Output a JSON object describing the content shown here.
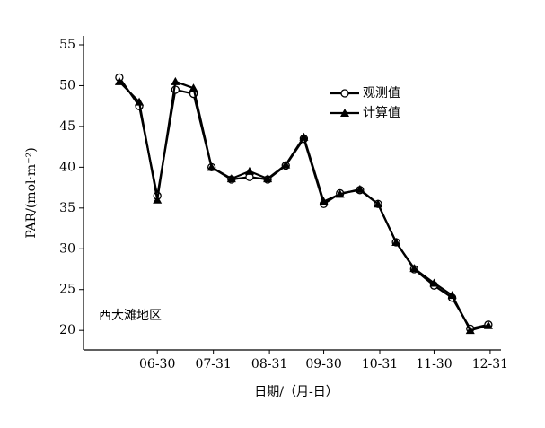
{
  "chart_data": {
    "type": "line",
    "ylabel": "PAR/(mol·m⁻²)",
    "xlabel": "日期/（月-日）",
    "annotation": "西大滩地区",
    "x": [
      160,
      171,
      181,
      191,
      201,
      211,
      222,
      232,
      242,
      252,
      262,
      273,
      282,
      293,
      303,
      313,
      323,
      334,
      344,
      354,
      364
    ],
    "series": [
      {
        "name": "观测值",
        "color": "#000000",
        "marker": "circle",
        "values": [
          51,
          47.5,
          36.5,
          49.5,
          49,
          40,
          38.5,
          38.8,
          38.5,
          40.2,
          43.5,
          35.5,
          36.8,
          37.2,
          35.5,
          30.8,
          27.5,
          25.5,
          24,
          20.2,
          20.7
        ]
      },
      {
        "name": "计算值",
        "color": "#000000",
        "marker": "triangle",
        "values": [
          50.5,
          48,
          36,
          50.5,
          49.7,
          40,
          38.6,
          39.5,
          38.6,
          40.3,
          43.7,
          35.8,
          36.7,
          37.3,
          35.5,
          30.8,
          27.6,
          25.8,
          24.3,
          20,
          20.6
        ]
      }
    ],
    "xlim": [
      140.2,
      371
    ],
    "xticks": [
      {
        "value": 181,
        "label": "06-30"
      },
      {
        "value": 212,
        "label": "07-31"
      },
      {
        "value": 243,
        "label": "08-31"
      },
      {
        "value": 273,
        "label": "09-30"
      },
      {
        "value": 304,
        "label": "10-31"
      },
      {
        "value": 334,
        "label": "11-30"
      },
      {
        "value": 365,
        "label": "12-31"
      }
    ],
    "ylim": [
      17.6,
      56.1
    ],
    "yticks": [
      20,
      25,
      30,
      35,
      40,
      45,
      50,
      55
    ],
    "legend": "upper right"
  }
}
